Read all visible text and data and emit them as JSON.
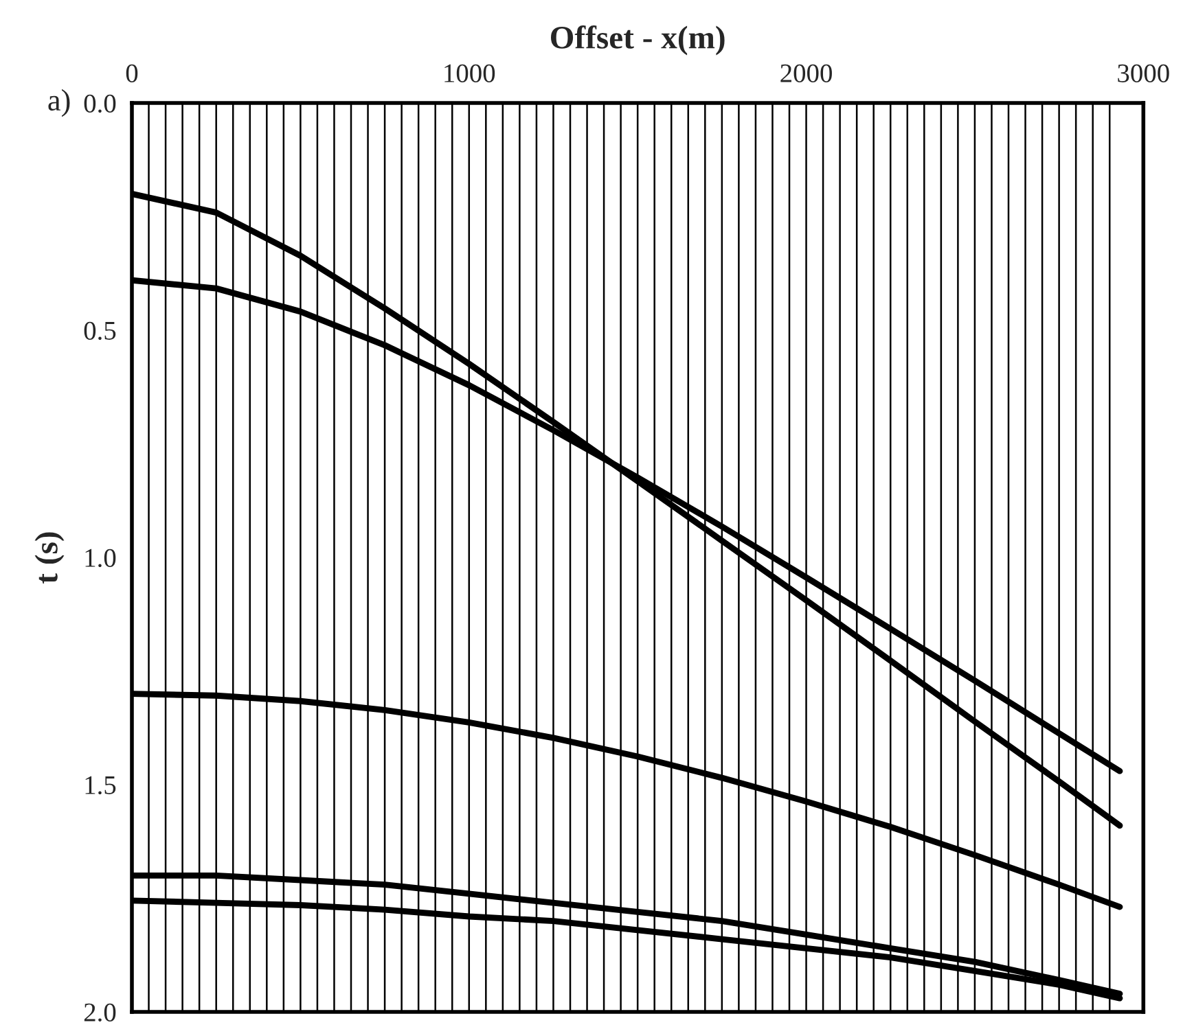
{
  "chart_data": {
    "type": "line",
    "xlabel": "Offset - x(m)",
    "ylabel": "t (s)",
    "annotations": [
      "a)"
    ],
    "x": [
      0,
      250,
      500,
      750,
      1000,
      1250,
      1500,
      1750,
      2000,
      2250,
      2500,
      2750,
      2930
    ],
    "series": [
      {
        "color": "#000000",
        "values": [
          0.2,
          0.241,
          0.336,
          0.452,
          0.574,
          0.702,
          0.832,
          0.963,
          1.094,
          1.227,
          1.361,
          1.493,
          1.59
        ]
      },
      {
        "color": "#000000",
        "values": [
          0.39,
          0.408,
          0.459,
          0.533,
          0.621,
          0.72,
          0.824,
          0.932,
          1.044,
          1.157,
          1.271,
          1.387,
          1.47
        ]
      },
      {
        "color": "#000000",
        "values": [
          1.3,
          1.304,
          1.316,
          1.336,
          1.363,
          1.397,
          1.438,
          1.485,
          1.537,
          1.593,
          1.655,
          1.72,
          1.769
        ]
      },
      {
        "color": "#000000",
        "values": [
          1.7,
          1.7,
          1.71,
          1.72,
          1.74,
          1.76,
          1.78,
          1.8,
          1.83,
          1.86,
          1.89,
          1.93,
          1.96
        ]
      },
      {
        "color": "#000000",
        "values": [
          1.755,
          1.76,
          1.765,
          1.775,
          1.79,
          1.8,
          1.82,
          1.84,
          1.86,
          1.88,
          1.91,
          1.94,
          1.97
        ]
      }
    ],
    "ref_lines": [
      {
        "axis": "x",
        "value": 50
      },
      {
        "axis": "x",
        "value": 100
      },
      {
        "axis": "x",
        "value": 150
      },
      {
        "axis": "x",
        "value": 200
      },
      {
        "axis": "x",
        "value": 250
      },
      {
        "axis": "x",
        "value": 300
      },
      {
        "axis": "x",
        "value": 350
      },
      {
        "axis": "x",
        "value": 400
      },
      {
        "axis": "x",
        "value": 450
      },
      {
        "axis": "x",
        "value": 500
      },
      {
        "axis": "x",
        "value": 550
      },
      {
        "axis": "x",
        "value": 600
      },
      {
        "axis": "x",
        "value": 650
      },
      {
        "axis": "x",
        "value": 700
      },
      {
        "axis": "x",
        "value": 750
      },
      {
        "axis": "x",
        "value": 800
      },
      {
        "axis": "x",
        "value": 850
      },
      {
        "axis": "x",
        "value": 900
      },
      {
        "axis": "x",
        "value": 950
      },
      {
        "axis": "x",
        "value": 1000
      },
      {
        "axis": "x",
        "value": 1050
      },
      {
        "axis": "x",
        "value": 1100
      },
      {
        "axis": "x",
        "value": 1150
      },
      {
        "axis": "x",
        "value": 1200
      },
      {
        "axis": "x",
        "value": 1250
      },
      {
        "axis": "x",
        "value": 1300
      },
      {
        "axis": "x",
        "value": 1350
      },
      {
        "axis": "x",
        "value": 1400
      },
      {
        "axis": "x",
        "value": 1450
      },
      {
        "axis": "x",
        "value": 1500
      },
      {
        "axis": "x",
        "value": 1550
      },
      {
        "axis": "x",
        "value": 1600
      },
      {
        "axis": "x",
        "value": 1650
      },
      {
        "axis": "x",
        "value": 1700
      },
      {
        "axis": "x",
        "value": 1750
      },
      {
        "axis": "x",
        "value": 1800
      },
      {
        "axis": "x",
        "value": 1850
      },
      {
        "axis": "x",
        "value": 1900
      },
      {
        "axis": "x",
        "value": 1950
      },
      {
        "axis": "x",
        "value": 2000
      },
      {
        "axis": "x",
        "value": 2050
      },
      {
        "axis": "x",
        "value": 2100
      },
      {
        "axis": "x",
        "value": 2150
      },
      {
        "axis": "x",
        "value": 2200
      },
      {
        "axis": "x",
        "value": 2250
      },
      {
        "axis": "x",
        "value": 2300
      },
      {
        "axis": "x",
        "value": 2350
      },
      {
        "axis": "x",
        "value": 2400
      },
      {
        "axis": "x",
        "value": 2450
      },
      {
        "axis": "x",
        "value": 2500
      },
      {
        "axis": "x",
        "value": 2550
      },
      {
        "axis": "x",
        "value": 2600
      },
      {
        "axis": "x",
        "value": 2650
      },
      {
        "axis": "x",
        "value": 2700
      },
      {
        "axis": "x",
        "value": 2750
      },
      {
        "axis": "x",
        "value": 2800
      },
      {
        "axis": "x",
        "value": 2850
      },
      {
        "axis": "x",
        "value": 2900
      }
    ],
    "xlim": [
      0,
      3000
    ],
    "xticks": [
      0,
      1000,
      2000,
      3000
    ],
    "ylim": [
      2.0,
      0.0
    ],
    "yticks": [
      {
        "value": 0,
        "label": "0.0"
      },
      {
        "value": 0.5,
        "label": "0.5"
      },
      {
        "value": 1,
        "label": "1.0"
      },
      {
        "value": 1.5,
        "label": "1.5"
      },
      {
        "value": 2,
        "label": "2.0"
      }
    ],
    "grid": false,
    "legend": false,
    "marker": "none",
    "line_style": "solid"
  }
}
